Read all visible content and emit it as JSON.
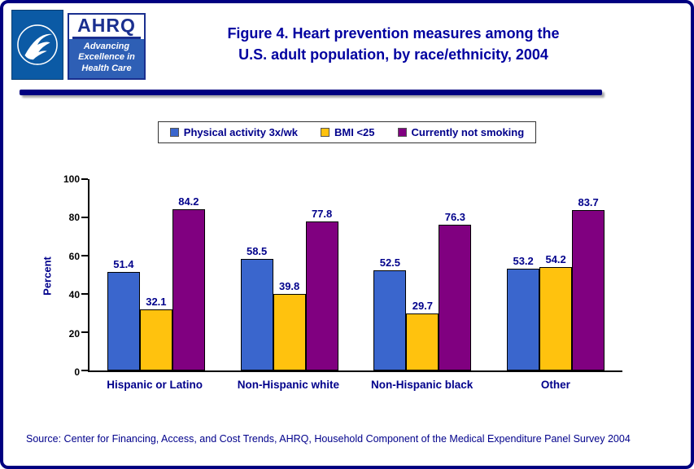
{
  "header": {
    "logo": {
      "acronym": "AHRQ",
      "tagline_lines": [
        "Advancing",
        "Excellence in",
        "Health Care"
      ]
    },
    "title_line1": "Figure 4. Heart prevention measures among the",
    "title_line2": "U.S. adult population, by race/ethnicity, 2004"
  },
  "chart_data": {
    "type": "bar",
    "categories": [
      "Hispanic or Latino",
      "Non-Hispanic white",
      "Non-Hispanic black",
      "Other"
    ],
    "series": [
      {
        "name": "Physical activity 3x/wk",
        "color": "#3a66cd",
        "values": [
          51.4,
          58.5,
          52.5,
          53.2
        ]
      },
      {
        "name": "BMI <25",
        "color": "#ffc20e",
        "values": [
          32.1,
          39.8,
          29.7,
          54.2
        ]
      },
      {
        "name": "Currently not smoking",
        "color": "#800080",
        "values": [
          84.2,
          77.8,
          76.3,
          83.7
        ]
      }
    ],
    "ylabel": "Percent",
    "ylim": [
      0,
      100
    ],
    "yticks": [
      0,
      20,
      40,
      60,
      80,
      100
    ],
    "legend_position": "top",
    "grid": false,
    "value_labels": true
  },
  "source": "Source: Center for Financing, Access, and Cost Trends, AHRQ, Household Component of the Medical Expenditure Panel Survey 2004",
  "colors": {
    "navy": "#000080",
    "title_text": "#0000a0",
    "label_text": "#00008b"
  }
}
